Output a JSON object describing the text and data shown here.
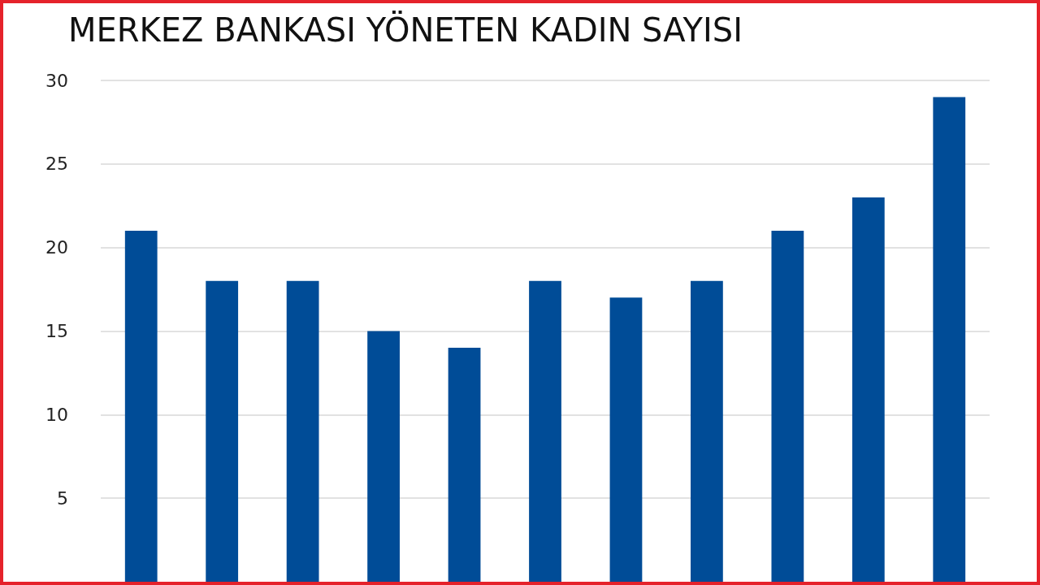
{
  "chart_data": {
    "type": "bar",
    "title": "MERKEZ BANKASI YÖNETEN KADIN SAYISI",
    "categories": [
      null,
      null,
      null,
      null,
      null,
      null,
      null,
      null,
      null,
      null,
      null
    ],
    "values": [
      21,
      18,
      18,
      15,
      14,
      18,
      17,
      18,
      21,
      23,
      29
    ],
    "color": "#004c97",
    "ylim": [
      0,
      30
    ],
    "yticks": [
      5,
      10,
      15,
      20,
      25,
      30
    ],
    "grid": "y",
    "tick_labels": "y"
  }
}
